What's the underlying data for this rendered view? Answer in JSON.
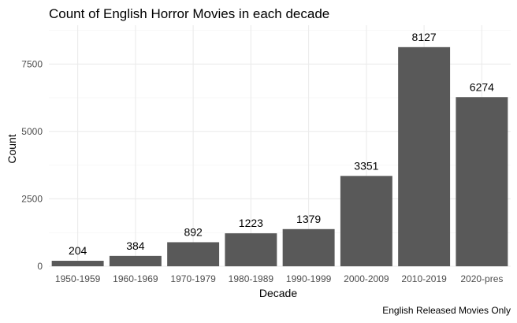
{
  "chart_data": {
    "type": "bar",
    "title": "Count of English Horror Movies in each decade",
    "xlabel": "Decade",
    "ylabel": "Count",
    "caption": "English Released Movies Only",
    "categories": [
      "1950-1959",
      "1960-1969",
      "1970-1979",
      "1980-1989",
      "1990-1999",
      "2000-2009",
      "2010-2019",
      "2020-pres"
    ],
    "values": [
      204,
      384,
      892,
      1223,
      1379,
      3351,
      8127,
      6274
    ],
    "data_labels": [
      "204",
      "384",
      "892",
      "1223",
      "1379",
      "3351",
      "8127",
      "6274"
    ],
    "yticks": [
      0,
      2500,
      5000,
      7500
    ],
    "ytick_labels": [
      "0",
      "2500",
      "5000",
      "7500"
    ],
    "ylim": [
      0,
      8940
    ],
    "grid": true,
    "bar_color": "#595959",
    "grid_color": "#ebebeb",
    "legend": "none"
  }
}
